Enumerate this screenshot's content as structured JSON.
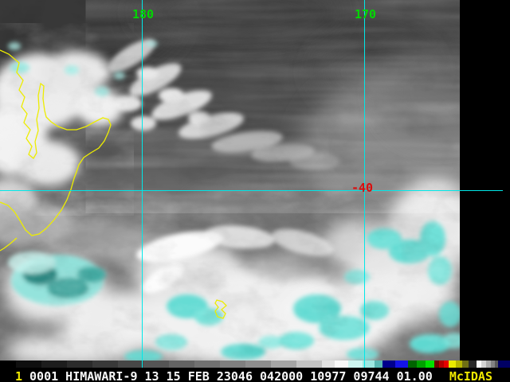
{
  "display": {
    "grid": {
      "labels": [
        {
          "text": "180"
        },
        {
          "text": "170"
        }
      ],
      "line_color": "#00e8e8",
      "label_color": "#00d800"
    },
    "marker": {
      "label": "-40",
      "color": "#dc0c0c"
    },
    "coastline_color": "#eded00",
    "no_data_band_color": "#000000"
  },
  "colorbar": {
    "segments": [
      {
        "color": "#000000",
        "width": 20
      },
      {
        "color": "#0f0f0f",
        "width": 32
      },
      {
        "color": "#1d1d1d",
        "width": 32
      },
      {
        "color": "#2b2b2b",
        "width": 32
      },
      {
        "color": "#393939",
        "width": 32
      },
      {
        "color": "#474747",
        "width": 32
      },
      {
        "color": "#555555",
        "width": 32
      },
      {
        "color": "#636363",
        "width": 32
      },
      {
        "color": "#717171",
        "width": 32
      },
      {
        "color": "#7f7f7f",
        "width": 32
      },
      {
        "color": "#8d8d8d",
        "width": 32
      },
      {
        "color": "#a5a5a5",
        "width": 32
      },
      {
        "color": "#c3c3c3",
        "width": 32
      },
      {
        "color": "#e2e2e2",
        "width": 16
      },
      {
        "color": "#f8f8f8",
        "width": 17
      },
      {
        "color": "#cdf5f0",
        "width": 18
      },
      {
        "color": "#9de9e2",
        "width": 15
      },
      {
        "color": "#58b8b3",
        "width": 10
      },
      {
        "color": "#00008c",
        "width": 16
      },
      {
        "color": "#1414e6",
        "width": 16
      },
      {
        "color": "#006400",
        "width": 11
      },
      {
        "color": "#00a000",
        "width": 11
      },
      {
        "color": "#00e000",
        "width": 11
      },
      {
        "color": "#6e0000",
        "width": 6
      },
      {
        "color": "#b40000",
        "width": 6
      },
      {
        "color": "#e60000",
        "width": 6
      },
      {
        "color": "#e8e800",
        "width": 9
      },
      {
        "color": "#b4b400",
        "width": 8
      },
      {
        "color": "#6e6e14",
        "width": 8
      },
      {
        "color": "#282828",
        "width": 10
      },
      {
        "color": "#fafafa",
        "width": 6
      },
      {
        "color": "#d2d2d2",
        "width": 6
      },
      {
        "color": "#aaaaaa",
        "width": 6
      },
      {
        "color": "#828282",
        "width": 5
      },
      {
        "color": "#5a5a5a",
        "width": 4
      },
      {
        "color": "#000064",
        "width": 15
      }
    ]
  },
  "status_bar": {
    "frame_number": "1",
    "info": "0001 HIMAWARI-9 13 15 FEB 23046 042000 10977 09744 01.00",
    "brand": "McIDAS",
    "text_color": "#f8f8f8",
    "accent_color": "#f0e800"
  }
}
